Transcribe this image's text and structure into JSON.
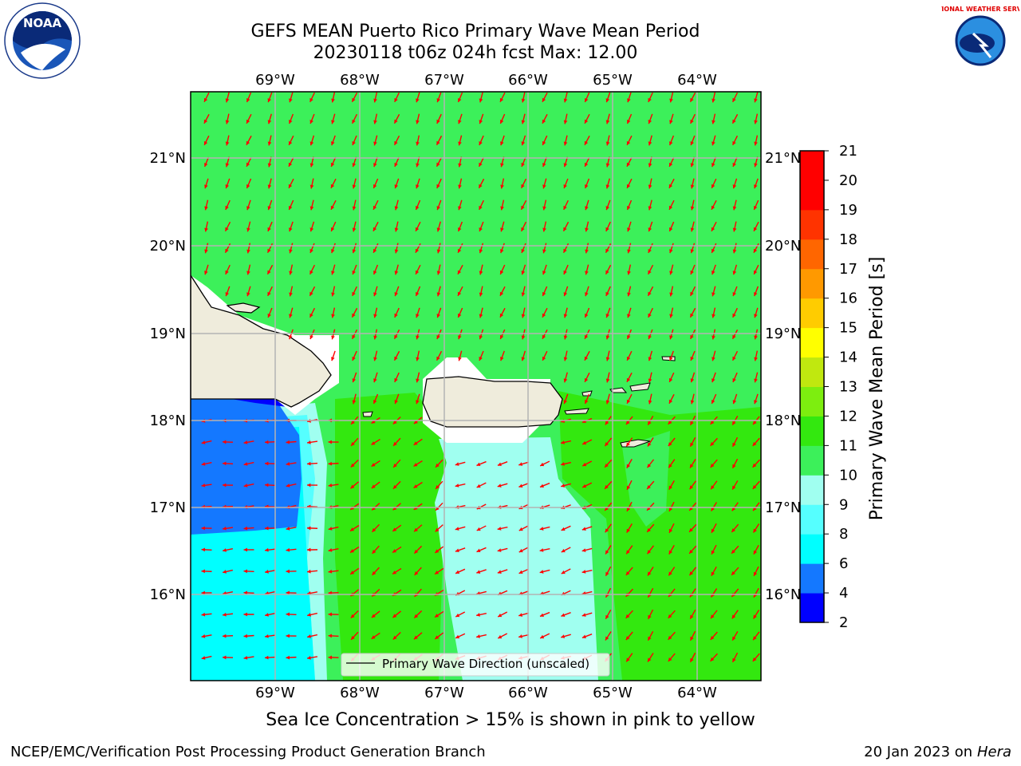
{
  "title": {
    "line1": "GEFS MEAN Puerto Rico Primary Wave Mean Period",
    "line2": "20230118 t06z 024h fcst   Max: 12.00"
  },
  "map": {
    "lon_labels": [
      "69°W",
      "68°W",
      "67°W",
      "66°W",
      "65°W",
      "64°W"
    ],
    "lat_labels": [
      "21°N",
      "20°N",
      "19°N",
      "18°N",
      "17°N",
      "16°N"
    ],
    "legend_label": "Primary Wave Direction (unscaled)",
    "arrow_color": "#ff0000",
    "land_color": "#efecdc"
  },
  "colorbar": {
    "label": "Primary Wave Mean Period [s]",
    "ticks": [
      "2",
      "4",
      "6",
      "8",
      "9",
      "10",
      "11",
      "12",
      "13",
      "14",
      "15",
      "16",
      "17",
      "18",
      "19",
      "20",
      "21"
    ],
    "colors": [
      "#0000ff",
      "#1478ff",
      "#00ffff",
      "#55ffff",
      "#a0fff0",
      "#3cf05a",
      "#33e80f",
      "#7dee0f",
      "#c0e80f",
      "#ffff00",
      "#ffcc00",
      "#ff9900",
      "#ff6600",
      "#ff3300",
      "#ff0000",
      "#ff0000"
    ]
  },
  "logos": {
    "left": "NOAA",
    "right": "NATIONAL WEATHER SERVICE"
  },
  "bottom_note": "Sea Ice Concentration > 15% is shown in pink to yellow",
  "footer": {
    "left": "NCEP/EMC/Verification Post Processing Product Generation Branch",
    "date": "20 Jan 2023 on ",
    "host": "Hera"
  }
}
